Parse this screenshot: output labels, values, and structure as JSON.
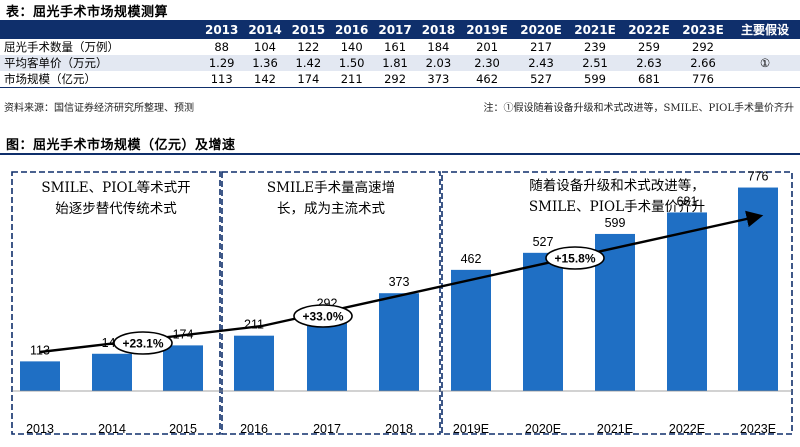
{
  "table": {
    "title": "表：屈光手术市场规模测算",
    "header_blank": "",
    "years": [
      "2013",
      "2014",
      "2015",
      "2016",
      "2017",
      "2018",
      "2019E",
      "2020E",
      "2021E",
      "2022E",
      "2023E"
    ],
    "note_header": "主要假设",
    "rows": [
      {
        "label": "屈光手术数量（万例）",
        "values": [
          "88",
          "104",
          "122",
          "140",
          "161",
          "184",
          "201",
          "217",
          "239",
          "259",
          "292"
        ],
        "note": ""
      },
      {
        "label": "平均客单价（万元）",
        "values": [
          "1.29",
          "1.36",
          "1.42",
          "1.50",
          "1.81",
          "2.03",
          "2.30",
          "2.43",
          "2.51",
          "2.63",
          "2.66"
        ],
        "note": "①"
      },
      {
        "label": "市场规模（亿元）",
        "values": [
          "113",
          "142",
          "174",
          "211",
          "292",
          "373",
          "462",
          "527",
          "599",
          "681",
          "776"
        ],
        "note": ""
      }
    ],
    "source": "资料来源：国信证券经济研究所整理、预测",
    "footnote": "注：①假设随着设备升级和术式改进等，SMILE、PIOL手术量价齐升"
  },
  "figure": {
    "title": "图：屈光手术市场规模（亿元）及增速"
  },
  "chart_data": {
    "type": "bar",
    "title": "屈光手术市场规模（亿元）及增速",
    "categories": [
      "2013",
      "2014",
      "2015",
      "2016",
      "2017",
      "2018",
      "2019E",
      "2020E",
      "2021E",
      "2022E",
      "2023E"
    ],
    "values": [
      113,
      142,
      174,
      211,
      292,
      373,
      462,
      527,
      599,
      681,
      776
    ],
    "ylim": [
      0,
      820
    ],
    "bar_color": "#1f6fc4",
    "accent_color": "#0f2f6b",
    "phases": [
      {
        "text_lines": [
          "SMILE、PIOL等术式开",
          "始逐步替代传统术式"
        ],
        "growth": "+23.1%",
        "start": 0,
        "end": 2
      },
      {
        "text_lines": [
          "SMILE手术量高速增",
          "长，成为主流术式"
        ],
        "growth": "+33.0%",
        "start": 3,
        "end": 5
      },
      {
        "text_lines": [
          "随着设备升级和术式改进等，",
          "SMILE、PIOL手术量价齐升"
        ],
        "growth": "+15.8%",
        "start": 6,
        "end": 10
      }
    ]
  }
}
